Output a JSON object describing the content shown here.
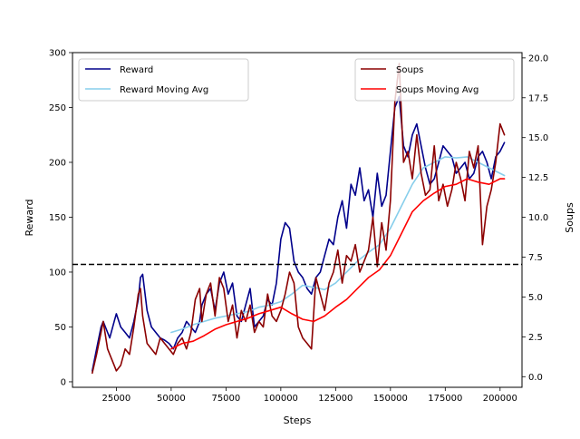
{
  "chart_data": {
    "type": "line",
    "title": "",
    "xlabel": "Steps",
    "ylabel_left": "Reward",
    "ylabel_right": "Soups",
    "xlim": [
      5000,
      210000
    ],
    "ylim_left": [
      -5,
      300
    ],
    "ylim_right": [
      -0.667,
      20.333
    ],
    "xticks": [
      25000,
      50000,
      75000,
      100000,
      125000,
      150000,
      175000,
      200000
    ],
    "xtick_labels": [
      "25000",
      "50000",
      "75000",
      "100000",
      "125000",
      "150000",
      "175000",
      "200000"
    ],
    "yticks_left": [
      0,
      50,
      100,
      150,
      200,
      250,
      300
    ],
    "ytick_labels_left": [
      "0",
      "50",
      "100",
      "150",
      "200",
      "250",
      "300"
    ],
    "yticks_right": [
      0,
      2.5,
      5,
      7.5,
      10,
      12.5,
      15,
      17.5,
      20
    ],
    "ytick_labels_right": [
      "0.0",
      "2.5",
      "5.0",
      "7.5",
      "10.0",
      "12.5",
      "15.0",
      "17.5",
      "20.0"
    ],
    "hline": {
      "y": 107,
      "axis": "left",
      "style": "dashed",
      "color": "#000000"
    },
    "grid": false,
    "legend_left": {
      "placement": "top-left",
      "entries": [
        "Reward",
        "Reward Moving Avg"
      ]
    },
    "legend_right": {
      "placement": "top-right",
      "entries": [
        "Soups",
        "Soups Moving Avg"
      ]
    },
    "series": [
      {
        "name": "Reward",
        "axis": "left",
        "color": "#00008b",
        "x": [
          14000,
          16000,
          18000,
          19000,
          21000,
          22000,
          24000,
          25000,
          27000,
          29000,
          31000,
          33000,
          35000,
          36000,
          37000,
          39000,
          41000,
          43000,
          45000,
          47000,
          49000,
          51000,
          53000,
          55000,
          57000,
          59000,
          61000,
          63000,
          64000,
          66000,
          68000,
          70000,
          72000,
          74000,
          76000,
          78000,
          80000,
          82000,
          84000,
          86000,
          88000,
          90000,
          92000,
          94000,
          96000,
          98000,
          100000,
          102000,
          104000,
          106000,
          108000,
          110000,
          112000,
          114000,
          116000,
          118000,
          120000,
          122000,
          124000,
          126000,
          128000,
          130000,
          132000,
          134000,
          136000,
          138000,
          140000,
          142000,
          144000,
          146000,
          148000,
          150000,
          152000,
          154000,
          156000,
          158000,
          160000,
          162000,
          164000,
          166000,
          168000,
          170000,
          172000,
          174000,
          176000,
          178000,
          180000,
          182000,
          184000,
          186000,
          188000,
          190000,
          192000,
          194000,
          196000,
          198000,
          200000,
          202000
        ],
        "y": [
          10,
          30,
          50,
          55,
          45,
          40,
          55,
          62,
          50,
          45,
          40,
          55,
          75,
          95,
          98,
          65,
          50,
          45,
          40,
          38,
          35,
          30,
          40,
          45,
          55,
          50,
          45,
          55,
          70,
          80,
          85,
          65,
          90,
          100,
          80,
          90,
          60,
          55,
          70,
          85,
          50,
          55,
          60,
          75,
          70,
          90,
          130,
          145,
          140,
          110,
          100,
          95,
          85,
          80,
          95,
          100,
          115,
          130,
          125,
          150,
          165,
          140,
          180,
          170,
          195,
          165,
          175,
          150,
          190,
          160,
          170,
          210,
          250,
          260,
          215,
          205,
          225,
          235,
          215,
          195,
          180,
          185,
          200,
          215,
          210,
          205,
          190,
          195,
          200,
          185,
          190,
          205,
          210,
          200,
          185,
          205,
          210,
          218
        ]
      },
      {
        "name": "Reward Moving Avg",
        "axis": "left",
        "color": "#87ceeb",
        "x": [
          50000,
          55000,
          60000,
          65000,
          70000,
          75000,
          80000,
          85000,
          90000,
          95000,
          100000,
          105000,
          110000,
          115000,
          120000,
          125000,
          130000,
          135000,
          140000,
          145000,
          150000,
          155000,
          160000,
          165000,
          170000,
          175000,
          180000,
          185000,
          190000,
          195000,
          200000,
          202000
        ],
        "y": [
          45,
          48,
          52,
          55,
          58,
          60,
          62,
          64,
          68,
          70,
          73,
          80,
          88,
          86,
          84,
          90,
          100,
          110,
          118,
          125,
          140,
          160,
          180,
          195,
          200,
          205,
          204,
          205,
          200,
          195,
          190,
          188
        ]
      },
      {
        "name": "Soups",
        "axis": "left",
        "color": "#8b0000",
        "x": [
          14000,
          16000,
          18000,
          19000,
          21000,
          22000,
          24000,
          25000,
          27000,
          29000,
          31000,
          33000,
          35000,
          36000,
          37000,
          39000,
          41000,
          43000,
          45000,
          47000,
          49000,
          51000,
          53000,
          55000,
          57000,
          59000,
          61000,
          63000,
          64000,
          66000,
          68000,
          70000,
          72000,
          74000,
          76000,
          78000,
          80000,
          82000,
          84000,
          86000,
          88000,
          90000,
          92000,
          94000,
          96000,
          98000,
          100000,
          102000,
          104000,
          106000,
          108000,
          110000,
          112000,
          114000,
          116000,
          118000,
          120000,
          122000,
          124000,
          126000,
          128000,
          130000,
          132000,
          134000,
          136000,
          138000,
          140000,
          142000,
          144000,
          146000,
          148000,
          150000,
          152000,
          154000,
          156000,
          158000,
          160000,
          162000,
          164000,
          166000,
          168000,
          170000,
          172000,
          174000,
          176000,
          178000,
          180000,
          182000,
          184000,
          186000,
          188000,
          190000,
          192000,
          194000,
          196000,
          198000,
          200000,
          202000
        ],
        "y": [
          8,
          25,
          45,
          55,
          30,
          25,
          15,
          10,
          15,
          30,
          25,
          50,
          80,
          85,
          60,
          35,
          30,
          25,
          40,
          35,
          30,
          25,
          35,
          40,
          30,
          45,
          75,
          85,
          55,
          80,
          90,
          60,
          95,
          85,
          55,
          70,
          40,
          65,
          55,
          70,
          45,
          55,
          50,
          80,
          60,
          55,
          65,
          80,
          100,
          90,
          50,
          40,
          35,
          30,
          95,
          80,
          65,
          90,
          100,
          120,
          90,
          115,
          110,
          125,
          100,
          110,
          120,
          150,
          105,
          145,
          120,
          165,
          255,
          290,
          200,
          210,
          185,
          225,
          190,
          170,
          175,
          215,
          165,
          180,
          160,
          175,
          200,
          185,
          165,
          210,
          195,
          215,
          125,
          160,
          175,
          200,
          235,
          225
        ]
      },
      {
        "name": "Soups Moving Avg",
        "axis": "left",
        "color": "#ff0000",
        "x": [
          50000,
          55000,
          60000,
          65000,
          70000,
          75000,
          80000,
          85000,
          90000,
          95000,
          100000,
          105000,
          110000,
          115000,
          120000,
          125000,
          130000,
          135000,
          140000,
          145000,
          150000,
          155000,
          160000,
          165000,
          170000,
          175000,
          180000,
          185000,
          190000,
          195000,
          200000,
          202000
        ],
        "y": [
          30,
          35,
          37,
          42,
          48,
          52,
          55,
          58,
          62,
          65,
          68,
          62,
          57,
          55,
          60,
          68,
          75,
          85,
          95,
          102,
          115,
          135,
          155,
          165,
          172,
          178,
          180,
          185,
          182,
          180,
          185,
          185
        ]
      }
    ]
  }
}
